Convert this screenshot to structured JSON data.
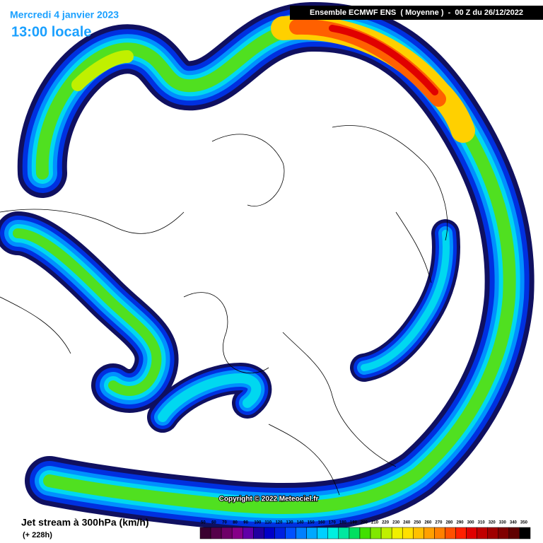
{
  "header": {
    "date": "Mercredi 4 janvier 2023",
    "time": "13:00 locale",
    "model": "Ensemble ECMWF ENS  ( Moyenne )  -  00 Z du 26/12/2022"
  },
  "copyright": "Copyright © 2022 Meteociel.fr",
  "footer": {
    "title": "Jet stream à 300hPa (km/h)",
    "lead": "(+ 228h)"
  },
  "legend": {
    "ticks": [
      50,
      60,
      70,
      80,
      90,
      100,
      110,
      120,
      130,
      140,
      150,
      160,
      170,
      180,
      190,
      200,
      210,
      220,
      230,
      240,
      250,
      260,
      270,
      280,
      290,
      300,
      310,
      320,
      330,
      340,
      350
    ],
    "colors": [
      "#3a0030",
      "#55004a",
      "#6e0068",
      "#860088",
      "#6000a8",
      "#2000a0",
      "#0000c8",
      "#0020e0",
      "#0050ff",
      "#0080ff",
      "#00a8ff",
      "#00d0ff",
      "#00f0e0",
      "#00e8a0",
      "#00e060",
      "#40e000",
      "#80e800",
      "#c0f000",
      "#f0f000",
      "#ffe000",
      "#ffc000",
      "#ffa000",
      "#ff8000",
      "#ff5000",
      "#ff2000",
      "#e00000",
      "#c00000",
      "#a00000",
      "#800000",
      "#600000",
      "#000000"
    ]
  }
}
